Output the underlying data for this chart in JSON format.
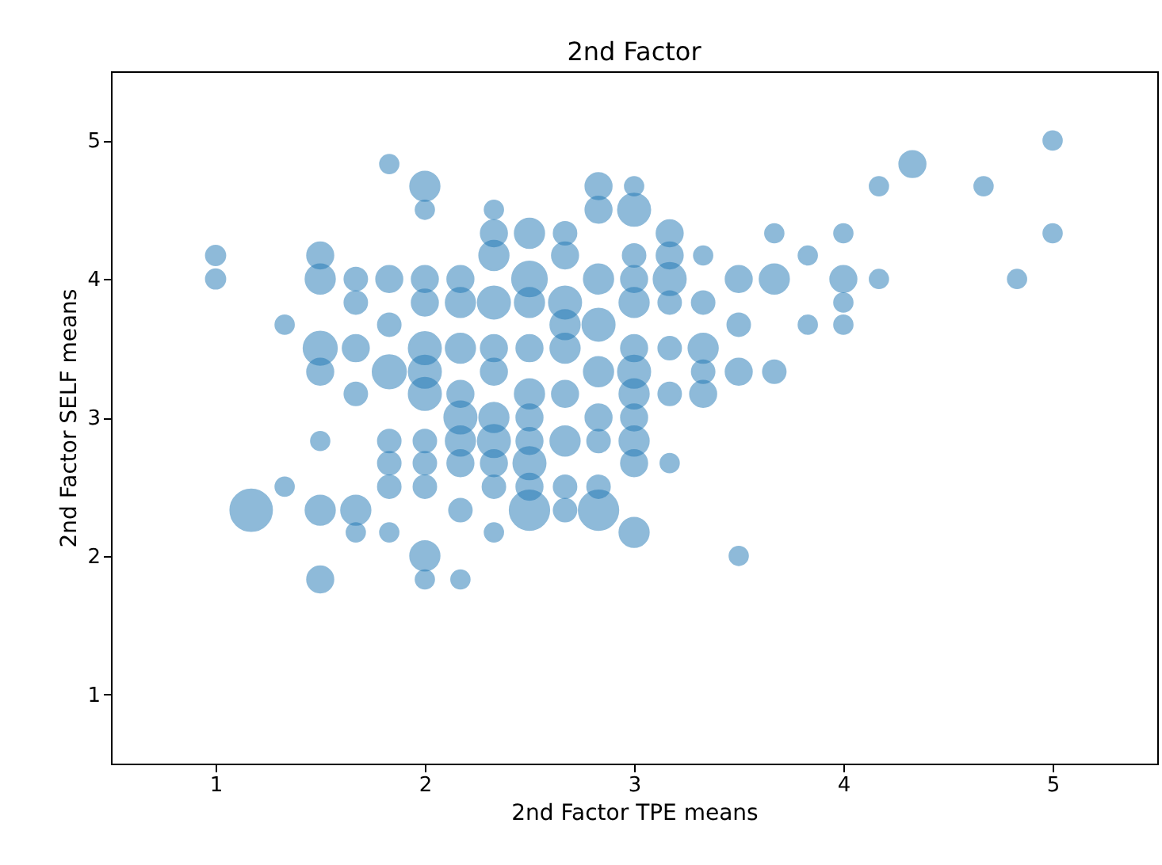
{
  "chart_data": {
    "type": "bubble",
    "title": "2nd Factor",
    "xlabel": "2nd Factor TPE means",
    "ylabel": "2nd Factor SELF means",
    "color": "#1f77b4",
    "xlim": [
      0.5,
      5.5
    ],
    "ylim": [
      0.5,
      5.5
    ],
    "xticks": [
      1,
      2,
      3,
      4,
      5
    ],
    "yticks": [
      1,
      2,
      3,
      4,
      5
    ],
    "grid": false,
    "x": [
      1,
      1,
      1.33,
      1.33,
      1.17,
      1.5,
      1.5,
      1.5,
      1.5,
      1.5,
      1.5,
      1.5,
      1.67,
      1.67,
      1.67,
      1.67,
      1.67,
      1.67,
      1.83,
      1.83,
      1.83,
      1.83,
      1.83,
      1.83,
      1.83,
      1.83,
      2,
      2,
      2,
      2,
      2,
      2,
      2,
      2,
      2,
      2,
      2,
      2,
      2.17,
      2.17,
      2.17,
      2.17,
      2.17,
      2.17,
      2.17,
      2.17,
      2.17,
      2.33,
      2.33,
      2.33,
      2.33,
      2.33,
      2.33,
      2.33,
      2.33,
      2.33,
      2.33,
      2.33,
      2.5,
      2.5,
      2.5,
      2.5,
      2.5,
      2.5,
      2.5,
      2.5,
      2.5,
      2.5,
      2.67,
      2.67,
      2.67,
      2.67,
      2.67,
      2.67,
      2.67,
      2.67,
      2.67,
      2.83,
      2.83,
      2.83,
      2.83,
      2.83,
      2.83,
      2.83,
      2.83,
      2.83,
      3,
      3,
      3,
      3,
      3,
      3,
      3,
      3,
      3,
      3,
      3,
      3,
      3.17,
      3.17,
      3.17,
      3.17,
      3.17,
      3.17,
      3.17,
      3.33,
      3.33,
      3.33,
      3.33,
      3.33,
      3.5,
      3.5,
      3.5,
      3.5,
      3.67,
      3.67,
      3.67,
      3.83,
      3.83,
      4,
      4,
      4,
      4,
      4.17,
      4.17,
      4.33,
      4.67,
      4.83,
      5,
      5
    ],
    "values": [
      4.17,
      4,
      3.67,
      2.5,
      2.33,
      4.17,
      4,
      3.5,
      3.33,
      2.83,
      2.33,
      1.83,
      4,
      3.83,
      3.5,
      3.17,
      2.33,
      2.17,
      4.83,
      4,
      3.67,
      3.33,
      2.83,
      2.67,
      2.5,
      2.17,
      4.67,
      4.5,
      4,
      3.83,
      3.5,
      3.33,
      3.17,
      2.83,
      2.67,
      2.5,
      2,
      1.83,
      4,
      3.83,
      3.5,
      3.17,
      3,
      2.83,
      2.67,
      2.33,
      1.83,
      4.5,
      4.33,
      4.17,
      3.83,
      3.5,
      3.33,
      3,
      2.83,
      2.67,
      2.5,
      2.17,
      4.33,
      4,
      3.83,
      3.5,
      3.17,
      3,
      2.83,
      2.67,
      2.33,
      2.5,
      4.33,
      4.17,
      3.83,
      3.67,
      3.5,
      3.17,
      2.83,
      2.5,
      2.33,
      4.67,
      4.5,
      4,
      3.67,
      3.33,
      3,
      2.83,
      2.5,
      2.33,
      4.67,
      4.5,
      4.17,
      4,
      3.83,
      3.5,
      3.33,
      3.17,
      3,
      2.83,
      2.67,
      2.17,
      4.33,
      4.17,
      4,
      3.83,
      3.5,
      3.17,
      2.67,
      4.17,
      3.83,
      3.5,
      3.33,
      3.17,
      4,
      3.67,
      3.33,
      2,
      4.33,
      4,
      3.33,
      4.17,
      3.67,
      4.33,
      4,
      3.83,
      3.67,
      4.67,
      4,
      4.83,
      4.67,
      4,
      5,
      4.33
    ],
    "sizes": [
      0.22,
      0.22,
      0.2,
      0.2,
      1,
      0.4,
      0.5,
      0.64,
      0.4,
      0.2,
      0.5,
      0.4,
      0.3,
      0.3,
      0.4,
      0.3,
      0.5,
      0.2,
      0.2,
      0.4,
      0.3,
      0.64,
      0.3,
      0.3,
      0.3,
      0.2,
      0.5,
      0.2,
      0.4,
      0.4,
      0.6,
      0.6,
      0.6,
      0.3,
      0.3,
      0.3,
      0.5,
      0.2,
      0.4,
      0.5,
      0.5,
      0.4,
      0.6,
      0.5,
      0.4,
      0.3,
      0.2,
      0.2,
      0.4,
      0.5,
      0.6,
      0.4,
      0.4,
      0.5,
      0.6,
      0.4,
      0.3,
      0.2,
      0.5,
      0.7,
      0.5,
      0.4,
      0.5,
      0.4,
      0.4,
      0.6,
      0.9,
      0.4,
      0.3,
      0.4,
      0.6,
      0.5,
      0.5,
      0.4,
      0.5,
      0.3,
      0.3,
      0.4,
      0.4,
      0.5,
      0.6,
      0.5,
      0.4,
      0.3,
      0.3,
      0.9,
      0.2,
      0.6,
      0.3,
      0.4,
      0.5,
      0.4,
      0.6,
      0.5,
      0.4,
      0.5,
      0.4,
      0.5,
      0.4,
      0.4,
      0.6,
      0.3,
      0.3,
      0.3,
      0.2,
      0.2,
      0.3,
      0.5,
      0.3,
      0.4,
      0.4,
      0.3,
      0.4,
      0.2,
      0.2,
      0.5,
      0.3,
      0.2,
      0.2,
      0.2,
      0.4,
      0.2,
      0.2,
      0.2,
      0.2,
      0.4,
      0.2,
      0.2,
      0.2,
      0.2
    ]
  }
}
